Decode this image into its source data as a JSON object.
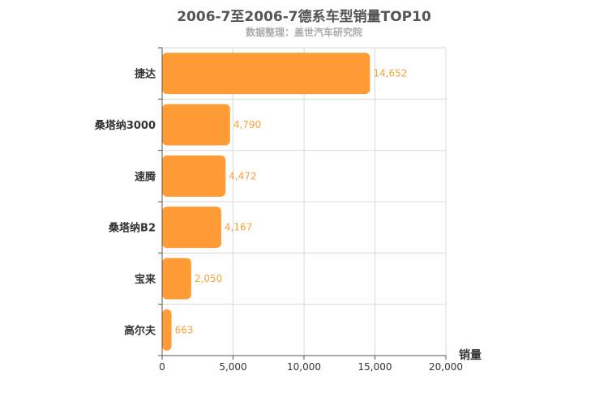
{
  "title": "2006-7至2006-7德系车型销量TOP10",
  "subtitle": "数据整理：盖世汽车研究院",
  "colors": {
    "bar": "#ff9c35",
    "data_label": "#f7a035",
    "grid": "#d9d9d9",
    "axis": "#555555",
    "title": "#555555",
    "subtitle": "#aaaaaa"
  },
  "chart_data": {
    "type": "bar",
    "orientation": "horizontal",
    "title": "2006-7至2006-7德系车型销量TOP10",
    "subtitle": "数据整理：盖世汽车研究院",
    "categories": [
      "捷达",
      "桑塔纳3000",
      "速腾",
      "桑塔纳B2",
      "宝来",
      "高尔夫"
    ],
    "values": [
      14652,
      4790,
      4472,
      4167,
      2050,
      663
    ],
    "value_labels": [
      "14,652",
      "4,790",
      "4,472",
      "4,167",
      "2,050",
      "663"
    ],
    "xlabel": "销量",
    "ylabel": "",
    "xlim": [
      0,
      20000
    ],
    "xticks": [
      0,
      5000,
      10000,
      15000,
      20000
    ],
    "xtick_labels": [
      "0",
      "5,000",
      "10,000",
      "15,000",
      "20,000"
    ],
    "grid": true,
    "legend": "none"
  }
}
